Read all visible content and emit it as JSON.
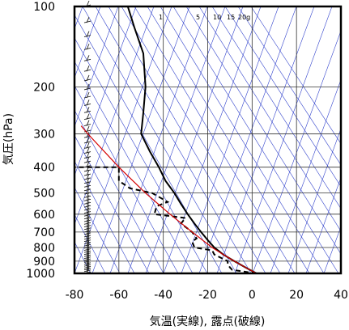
{
  "chart_data": {
    "type": "line",
    "title": "",
    "xlabel": "気温(実線), 露点(破線)",
    "ylabel": "気圧(hPa)",
    "xlim": [
      -80,
      40
    ],
    "ylim": [
      1000,
      100
    ],
    "y_scale": "log",
    "grid": true,
    "x_ticks": [
      "-80",
      "-60",
      "-40",
      "-20",
      "0",
      "20",
      "40"
    ],
    "y_ticks": [
      "100",
      "200",
      "300",
      "400",
      "500",
      "600",
      "700",
      "800",
      "900",
      "1000"
    ],
    "mixing_ratio_labels": [
      "1",
      "5",
      "10",
      "15",
      "20g"
    ],
    "series": [
      {
        "line": "solid",
        "color": "#000000",
        "pressure": [
          1000,
          950,
          900,
          850,
          800,
          750,
          700,
          650,
          600,
          550,
          500,
          450,
          400,
          350,
          300,
          250,
          200,
          150,
          120,
          100
        ],
        "values": [
          2,
          -3,
          -8,
          -13,
          -17,
          -20,
          -23,
          -26,
          -29,
          -32,
          -35,
          -39,
          -42,
          -46,
          -50,
          -49,
          -48,
          -49,
          -53,
          -56
        ]
      },
      {
        "line": "dashed",
        "color": "#000000",
        "pressure": [
          1000,
          970,
          950,
          920,
          900,
          850,
          820,
          800,
          760,
          740,
          700,
          650,
          620,
          600,
          560,
          540,
          500,
          480,
          450,
          400,
          400
        ],
        "values": [
          2,
          -9,
          -10,
          -11,
          -11,
          -17,
          -18,
          -26,
          -27,
          -25,
          -27,
          -32,
          -30,
          -44,
          -43,
          -38,
          -45,
          -55,
          -60,
          -60,
          -80
        ]
      },
      {
        "line": "solid",
        "color": "#d40000",
        "pressure": [
          1000,
          950,
          900,
          850,
          800,
          700,
          600,
          500,
          400,
          300,
          280
        ],
        "values": [
          2,
          -3,
          -8,
          -13,
          -18,
          -27,
          -37,
          -48,
          -60,
          -74,
          -77
        ]
      }
    ]
  }
}
